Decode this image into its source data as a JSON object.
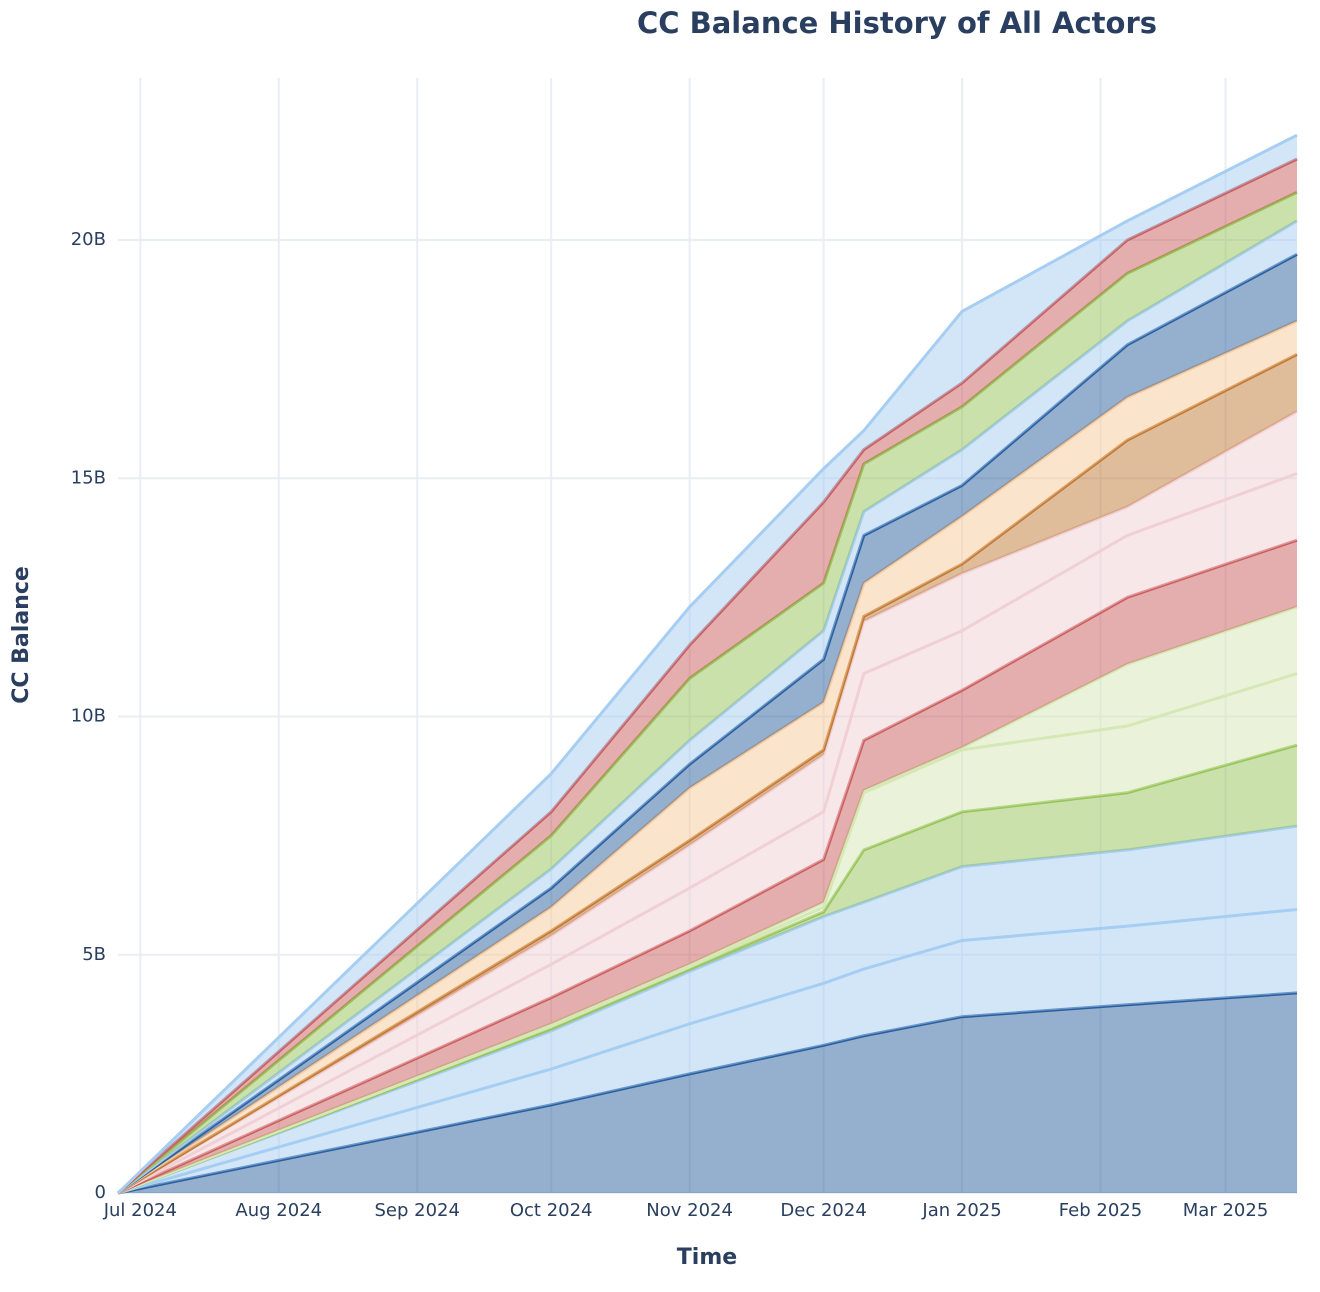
{
  "chart_data": {
    "type": "stacked_area",
    "title": "CC Balance History of All Actors",
    "x_label": "Time",
    "y_label": "CC Balance",
    "x": [
      "2024-06-26",
      "2024-10-01",
      "2024-11-01",
      "2024-12-01",
      "2024-12-10",
      "2025-01-01",
      "2025-02-07",
      "2025-03-17"
    ],
    "xlim": [
      "2024-06-26",
      "2025-03-17"
    ],
    "xticks": [
      {
        "value": "2024-07-01",
        "label": "Jul 2024"
      },
      {
        "value": "2024-08-01",
        "label": "Aug 2024"
      },
      {
        "value": "2024-09-01",
        "label": "Sep 2024"
      },
      {
        "value": "2024-10-01",
        "label": "Oct 2024"
      },
      {
        "value": "2024-11-01",
        "label": "Nov 2024"
      },
      {
        "value": "2024-12-01",
        "label": "Dec 2024"
      },
      {
        "value": "2025-01-01",
        "label": "Jan 2025"
      },
      {
        "value": "2025-02-01",
        "label": "Feb 2025"
      },
      {
        "value": "2025-03-01",
        "label": "Mar 2025"
      }
    ],
    "ylim": [
      0,
      23.4
    ],
    "yticks": [
      0,
      {
        "value": 5,
        "label": "5B"
      },
      {
        "value": 10,
        "label": "10B"
      },
      {
        "value": 15,
        "label": "15B"
      },
      {
        "value": 20,
        "label": "20B"
      }
    ],
    "grid": true,
    "series": [
      {
        "color": "#2c5f9e",
        "values": [
          0,
          1.85,
          2.5,
          3.1,
          3.3,
          3.7,
          3.95,
          4.2
        ]
      },
      {
        "color": "#a6cdf2",
        "values": [
          0,
          0.75,
          1.05,
          1.3,
          1.4,
          1.6,
          1.65,
          1.75
        ]
      },
      {
        "color": "#a6cdf2",
        "values": [
          0,
          0.8,
          1.1,
          1.4,
          1.4,
          1.55,
          1.6,
          1.75
        ]
      },
      {
        "color": "#98c45a",
        "values": [
          0,
          0.05,
          0.05,
          0.1,
          1.1,
          1.15,
          1.2,
          1.7
        ]
      },
      {
        "color": "#d5e8b5",
        "values": [
          0,
          0.05,
          0.05,
          0.1,
          1.2,
          1.3,
          1.4,
          1.5
        ]
      },
      {
        "color": "#d5e8b5",
        "values": [
          0,
          0.05,
          0.05,
          0.1,
          0.05,
          0.05,
          1.3,
          1.4
        ]
      },
      {
        "color": "#cc5e5e",
        "values": [
          0,
          0.55,
          0.7,
          0.9,
          1.05,
          1.2,
          1.4,
          1.4
        ]
      },
      {
        "color": "#f0d0d4",
        "values": [
          0,
          0.7,
          0.9,
          1.0,
          1.4,
          1.25,
          1.3,
          1.4
        ]
      },
      {
        "color": "#f0d0d4",
        "values": [
          0,
          0.6,
          0.9,
          1.2,
          1.1,
          1.2,
          0.6,
          1.3
        ]
      },
      {
        "color": "#c07a35",
        "values": [
          0,
          0.1,
          0.1,
          0.1,
          0.1,
          0.2,
          1.4,
          1.2
        ]
      },
      {
        "color": "#f7c99a",
        "values": [
          0,
          0.5,
          1.1,
          1.0,
          0.7,
          1.0,
          0.9,
          0.7
        ]
      },
      {
        "color": "#2c5f9e",
        "values": [
          0,
          0.4,
          0.5,
          0.9,
          1.0,
          0.65,
          1.1,
          1.4
        ]
      },
      {
        "color": "#a6cdf2",
        "values": [
          0,
          0.4,
          0.5,
          0.6,
          0.5,
          0.75,
          0.5,
          0.7
        ]
      },
      {
        "color": "#98c45a",
        "values": [
          0,
          0.7,
          1.3,
          1.0,
          1.0,
          0.9,
          1.0,
          0.6
        ]
      },
      {
        "color": "#cc5e5e",
        "values": [
          0,
          0.5,
          0.7,
          1.7,
          0.3,
          0.5,
          0.7,
          0.7
        ]
      },
      {
        "color": "#a6cdf2",
        "values": [
          0,
          0.8,
          0.8,
          0.7,
          0.4,
          1.5,
          0.4,
          0.5
        ]
      }
    ]
  }
}
